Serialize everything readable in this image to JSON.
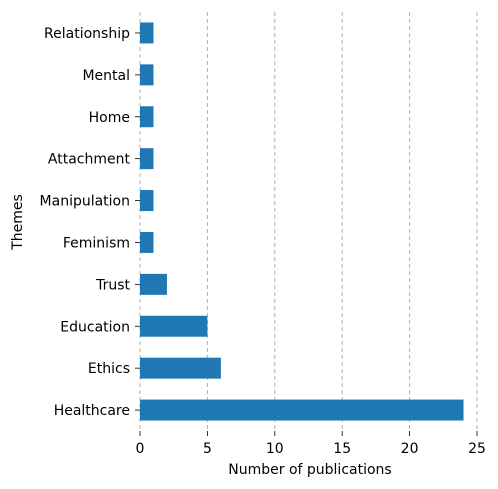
{
  "chart_data": {
    "type": "bar",
    "orientation": "horizontal",
    "categories": [
      "Relationship",
      "Mental",
      "Home",
      "Attachment",
      "Manipulation",
      "Feminism",
      "Trust",
      "Education",
      "Ethics",
      "Healthcare"
    ],
    "values": [
      1,
      1,
      1,
      1,
      1,
      1,
      2,
      5,
      6,
      24
    ],
    "xlabel": "Number of publications",
    "ylabel": "Themes",
    "xlim": [
      0,
      25
    ],
    "xticks": [
      0,
      5,
      10,
      15,
      20,
      25
    ],
    "grid": "vertical dashed",
    "bar_color": "#1f77b4",
    "grid_color": "#b0b0b0"
  }
}
